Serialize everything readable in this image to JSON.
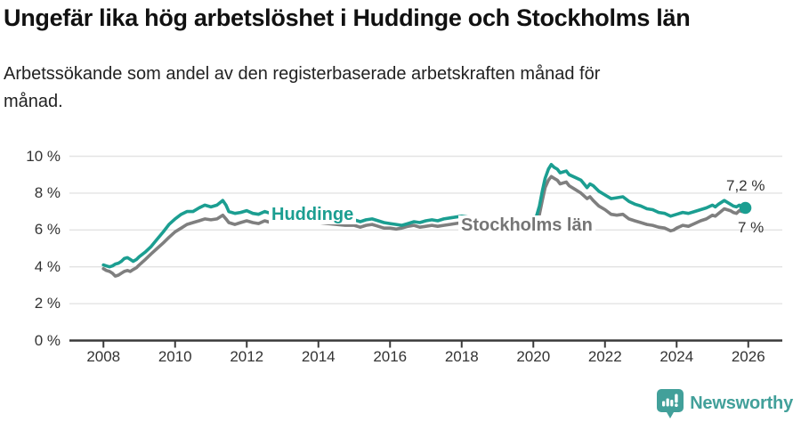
{
  "header": {
    "title": "Ungefär lika hög arbetslöshet i Huddinge och Stockholms län",
    "subtitle": "Arbetssökande som andel av den registerbaserade arbetskraften månad för månad."
  },
  "footer": {
    "brand": "Newsworthy",
    "brand_color": "#42A09A",
    "logo_icon": "speech-bubble-with-bar-chart-and-exclamation"
  },
  "colors": {
    "huddinge": "#1B9E91",
    "stockholm_line": "#7F7F7F",
    "stockholm_label": "#757575",
    "grid": "#E3E3E3",
    "axis": "#3A3A3A",
    "tick_text": "#333333"
  },
  "chart_data": {
    "type": "line",
    "title": "Ungefär lika hög arbetslöshet i Huddinge och Stockholms län",
    "xlabel": "",
    "ylabel": "",
    "grid": "horizontal",
    "legend_position": "inline-labels",
    "x_axis": {
      "min": 2007.05,
      "max": 2026.95,
      "ticks": [
        2008,
        2010,
        2012,
        2014,
        2016,
        2018,
        2020,
        2022,
        2024,
        2026
      ]
    },
    "y_axis": {
      "min": 0,
      "max": 10,
      "ticks": [
        {
          "value": 0,
          "label": "0 %"
        },
        {
          "value": 2,
          "label": "2 %"
        },
        {
          "value": 4,
          "label": "4 %"
        },
        {
          "value": 6,
          "label": "6 %"
        },
        {
          "value": 8,
          "label": "8 %"
        },
        {
          "value": 10,
          "label": "10 %"
        }
      ]
    },
    "series": [
      {
        "name": "Huddinge",
        "color": "#1B9E91",
        "label_color": "#1B9E91",
        "end_label": "7,2 %",
        "end_value": 7.2,
        "end_dot": true,
        "points": [
          [
            2008.0,
            4.1
          ],
          [
            2008.08,
            4.05
          ],
          [
            2008.17,
            4.0
          ],
          [
            2008.25,
            4.05
          ],
          [
            2008.33,
            4.15
          ],
          [
            2008.42,
            4.2
          ],
          [
            2008.5,
            4.3
          ],
          [
            2008.58,
            4.45
          ],
          [
            2008.67,
            4.5
          ],
          [
            2008.75,
            4.4
          ],
          [
            2008.83,
            4.3
          ],
          [
            2008.92,
            4.4
          ],
          [
            2009.0,
            4.55
          ],
          [
            2009.17,
            4.8
          ],
          [
            2009.33,
            5.1
          ],
          [
            2009.5,
            5.5
          ],
          [
            2009.67,
            5.9
          ],
          [
            2009.83,
            6.3
          ],
          [
            2010.0,
            6.6
          ],
          [
            2010.17,
            6.85
          ],
          [
            2010.33,
            7.0
          ],
          [
            2010.5,
            7.0
          ],
          [
            2010.67,
            7.2
          ],
          [
            2010.83,
            7.35
          ],
          [
            2011.0,
            7.25
          ],
          [
            2011.17,
            7.35
          ],
          [
            2011.33,
            7.6
          ],
          [
            2011.42,
            7.35
          ],
          [
            2011.5,
            7.0
          ],
          [
            2011.67,
            6.9
          ],
          [
            2011.83,
            6.95
          ],
          [
            2012.0,
            7.05
          ],
          [
            2012.17,
            6.9
          ],
          [
            2012.33,
            6.85
          ],
          [
            2012.5,
            7.0
          ],
          [
            2012.67,
            6.9
          ],
          [
            2012.83,
            6.95
          ],
          [
            2013.0,
            7.0
          ],
          [
            2013.25,
            6.9
          ],
          [
            2013.5,
            6.85
          ],
          [
            2013.75,
            6.8
          ],
          [
            2014.0,
            6.75
          ],
          [
            2014.25,
            6.7
          ],
          [
            2014.5,
            6.65
          ],
          [
            2014.75,
            6.6
          ],
          [
            2015.0,
            6.55
          ],
          [
            2015.17,
            6.45
          ],
          [
            2015.33,
            6.55
          ],
          [
            2015.5,
            6.6
          ],
          [
            2015.67,
            6.5
          ],
          [
            2015.83,
            6.4
          ],
          [
            2016.0,
            6.35
          ],
          [
            2016.17,
            6.3
          ],
          [
            2016.33,
            6.25
          ],
          [
            2016.5,
            6.35
          ],
          [
            2016.67,
            6.45
          ],
          [
            2016.83,
            6.4
          ],
          [
            2017.0,
            6.5
          ],
          [
            2017.17,
            6.55
          ],
          [
            2017.33,
            6.5
          ],
          [
            2017.5,
            6.6
          ],
          [
            2017.67,
            6.65
          ],
          [
            2017.83,
            6.7
          ],
          [
            2018.0,
            6.75
          ],
          [
            2018.17,
            6.7
          ],
          [
            2018.33,
            6.6
          ],
          [
            2018.5,
            6.55
          ],
          [
            2018.67,
            6.5
          ],
          [
            2018.83,
            6.45
          ],
          [
            2019.0,
            6.45
          ],
          [
            2019.25,
            6.4
          ],
          [
            2019.5,
            6.3
          ],
          [
            2019.75,
            6.3
          ],
          [
            2019.92,
            6.35
          ],
          [
            2020.0,
            6.45
          ],
          [
            2020.08,
            6.7
          ],
          [
            2020.17,
            7.3
          ],
          [
            2020.25,
            8.1
          ],
          [
            2020.33,
            8.8
          ],
          [
            2020.42,
            9.3
          ],
          [
            2020.5,
            9.55
          ],
          [
            2020.58,
            9.4
          ],
          [
            2020.67,
            9.3
          ],
          [
            2020.75,
            9.1
          ],
          [
            2020.83,
            9.15
          ],
          [
            2020.92,
            9.2
          ],
          [
            2021.0,
            9.0
          ],
          [
            2021.17,
            8.85
          ],
          [
            2021.33,
            8.7
          ],
          [
            2021.5,
            8.3
          ],
          [
            2021.58,
            8.5
          ],
          [
            2021.67,
            8.4
          ],
          [
            2021.83,
            8.1
          ],
          [
            2022.0,
            7.9
          ],
          [
            2022.17,
            7.7
          ],
          [
            2022.33,
            7.75
          ],
          [
            2022.5,
            7.8
          ],
          [
            2022.67,
            7.55
          ],
          [
            2022.83,
            7.4
          ],
          [
            2023.0,
            7.3
          ],
          [
            2023.17,
            7.15
          ],
          [
            2023.33,
            7.1
          ],
          [
            2023.5,
            6.95
          ],
          [
            2023.67,
            6.9
          ],
          [
            2023.83,
            6.75
          ],
          [
            2023.92,
            6.8
          ],
          [
            2024.0,
            6.85
          ],
          [
            2024.17,
            6.95
          ],
          [
            2024.33,
            6.9
          ],
          [
            2024.5,
            7.0
          ],
          [
            2024.67,
            7.1
          ],
          [
            2024.83,
            7.2
          ],
          [
            2025.0,
            7.35
          ],
          [
            2025.08,
            7.25
          ],
          [
            2025.17,
            7.4
          ],
          [
            2025.33,
            7.6
          ],
          [
            2025.5,
            7.4
          ],
          [
            2025.58,
            7.3
          ],
          [
            2025.67,
            7.25
          ],
          [
            2025.75,
            7.35
          ],
          [
            2025.83,
            7.25
          ],
          [
            2025.92,
            7.2
          ]
        ]
      },
      {
        "name": "Stockholms län",
        "color": "#7F7F7F",
        "label_color": "#757575",
        "end_label": "7 %",
        "end_value": 7.0,
        "end_dot": false,
        "points": [
          [
            2008.0,
            3.9
          ],
          [
            2008.08,
            3.8
          ],
          [
            2008.17,
            3.75
          ],
          [
            2008.25,
            3.65
          ],
          [
            2008.33,
            3.5
          ],
          [
            2008.42,
            3.55
          ],
          [
            2008.5,
            3.65
          ],
          [
            2008.58,
            3.75
          ],
          [
            2008.67,
            3.8
          ],
          [
            2008.75,
            3.75
          ],
          [
            2008.83,
            3.85
          ],
          [
            2008.92,
            3.95
          ],
          [
            2009.0,
            4.1
          ],
          [
            2009.17,
            4.4
          ],
          [
            2009.33,
            4.7
          ],
          [
            2009.5,
            5.0
          ],
          [
            2009.67,
            5.3
          ],
          [
            2009.83,
            5.6
          ],
          [
            2010.0,
            5.9
          ],
          [
            2010.17,
            6.1
          ],
          [
            2010.33,
            6.3
          ],
          [
            2010.5,
            6.4
          ],
          [
            2010.67,
            6.5
          ],
          [
            2010.83,
            6.6
          ],
          [
            2011.0,
            6.55
          ],
          [
            2011.17,
            6.6
          ],
          [
            2011.33,
            6.8
          ],
          [
            2011.42,
            6.6
          ],
          [
            2011.5,
            6.4
          ],
          [
            2011.67,
            6.3
          ],
          [
            2011.83,
            6.4
          ],
          [
            2012.0,
            6.5
          ],
          [
            2012.17,
            6.4
          ],
          [
            2012.33,
            6.35
          ],
          [
            2012.5,
            6.5
          ],
          [
            2012.67,
            6.4
          ],
          [
            2012.83,
            6.45
          ],
          [
            2013.0,
            6.5
          ],
          [
            2013.25,
            6.5
          ],
          [
            2013.5,
            6.45
          ],
          [
            2013.75,
            6.4
          ],
          [
            2014.0,
            6.4
          ],
          [
            2014.25,
            6.35
          ],
          [
            2014.5,
            6.3
          ],
          [
            2014.75,
            6.25
          ],
          [
            2015.0,
            6.25
          ],
          [
            2015.17,
            6.15
          ],
          [
            2015.33,
            6.25
          ],
          [
            2015.5,
            6.3
          ],
          [
            2015.67,
            6.2
          ],
          [
            2015.83,
            6.1
          ],
          [
            2016.0,
            6.1
          ],
          [
            2016.17,
            6.05
          ],
          [
            2016.33,
            6.1
          ],
          [
            2016.5,
            6.2
          ],
          [
            2016.67,
            6.25
          ],
          [
            2016.83,
            6.15
          ],
          [
            2017.0,
            6.2
          ],
          [
            2017.17,
            6.25
          ],
          [
            2017.33,
            6.2
          ],
          [
            2017.5,
            6.25
          ],
          [
            2017.67,
            6.3
          ],
          [
            2017.83,
            6.35
          ],
          [
            2018.0,
            6.4
          ],
          [
            2018.17,
            6.35
          ],
          [
            2018.33,
            6.25
          ],
          [
            2018.5,
            6.2
          ],
          [
            2018.67,
            6.15
          ],
          [
            2018.83,
            6.1
          ],
          [
            2019.0,
            6.05
          ],
          [
            2019.25,
            6.0
          ],
          [
            2019.5,
            5.9
          ],
          [
            2019.75,
            5.85
          ],
          [
            2019.92,
            5.9
          ],
          [
            2020.0,
            6.0
          ],
          [
            2020.08,
            6.25
          ],
          [
            2020.17,
            6.85
          ],
          [
            2020.25,
            7.6
          ],
          [
            2020.33,
            8.3
          ],
          [
            2020.42,
            8.7
          ],
          [
            2020.5,
            8.9
          ],
          [
            2020.58,
            8.8
          ],
          [
            2020.67,
            8.7
          ],
          [
            2020.75,
            8.5
          ],
          [
            2020.83,
            8.55
          ],
          [
            2020.92,
            8.6
          ],
          [
            2021.0,
            8.4
          ],
          [
            2021.17,
            8.2
          ],
          [
            2021.33,
            8.0
          ],
          [
            2021.5,
            7.7
          ],
          [
            2021.58,
            7.8
          ],
          [
            2021.67,
            7.6
          ],
          [
            2021.83,
            7.3
          ],
          [
            2022.0,
            7.1
          ],
          [
            2022.17,
            6.85
          ],
          [
            2022.33,
            6.8
          ],
          [
            2022.5,
            6.85
          ],
          [
            2022.67,
            6.6
          ],
          [
            2022.83,
            6.5
          ],
          [
            2023.0,
            6.4
          ],
          [
            2023.17,
            6.3
          ],
          [
            2023.33,
            6.25
          ],
          [
            2023.5,
            6.15
          ],
          [
            2023.67,
            6.1
          ],
          [
            2023.83,
            5.95
          ],
          [
            2023.92,
            6.0
          ],
          [
            2024.0,
            6.1
          ],
          [
            2024.17,
            6.25
          ],
          [
            2024.33,
            6.2
          ],
          [
            2024.5,
            6.35
          ],
          [
            2024.67,
            6.5
          ],
          [
            2024.83,
            6.6
          ],
          [
            2025.0,
            6.8
          ],
          [
            2025.08,
            6.75
          ],
          [
            2025.17,
            6.9
          ],
          [
            2025.33,
            7.15
          ],
          [
            2025.5,
            7.05
          ],
          [
            2025.58,
            6.95
          ],
          [
            2025.67,
            6.9
          ],
          [
            2025.75,
            7.05
          ],
          [
            2025.83,
            7.0
          ],
          [
            2025.92,
            7.0
          ]
        ]
      }
    ]
  }
}
